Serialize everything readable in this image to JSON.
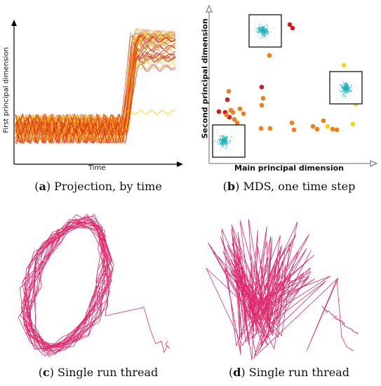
{
  "panels": {
    "a": {
      "tag": "a",
      "caption": "Projection, by time",
      "xlabel": "Time",
      "ylabel": "First principal dimension"
    },
    "b": {
      "tag": "b",
      "caption": "MDS, one time step",
      "xlabel": "Main principal dimension",
      "ylabel": "Second principal dimension"
    },
    "c": {
      "tag": "c",
      "caption": "Single run thread"
    },
    "d": {
      "tag": "d",
      "caption": "Single run thread"
    }
  },
  "colors": {
    "red": "#d7191c",
    "orange": "#f07f1a",
    "yellow": "#f2d50c",
    "magenta": "#e0105a",
    "teal": "#1fb3b8"
  }
}
